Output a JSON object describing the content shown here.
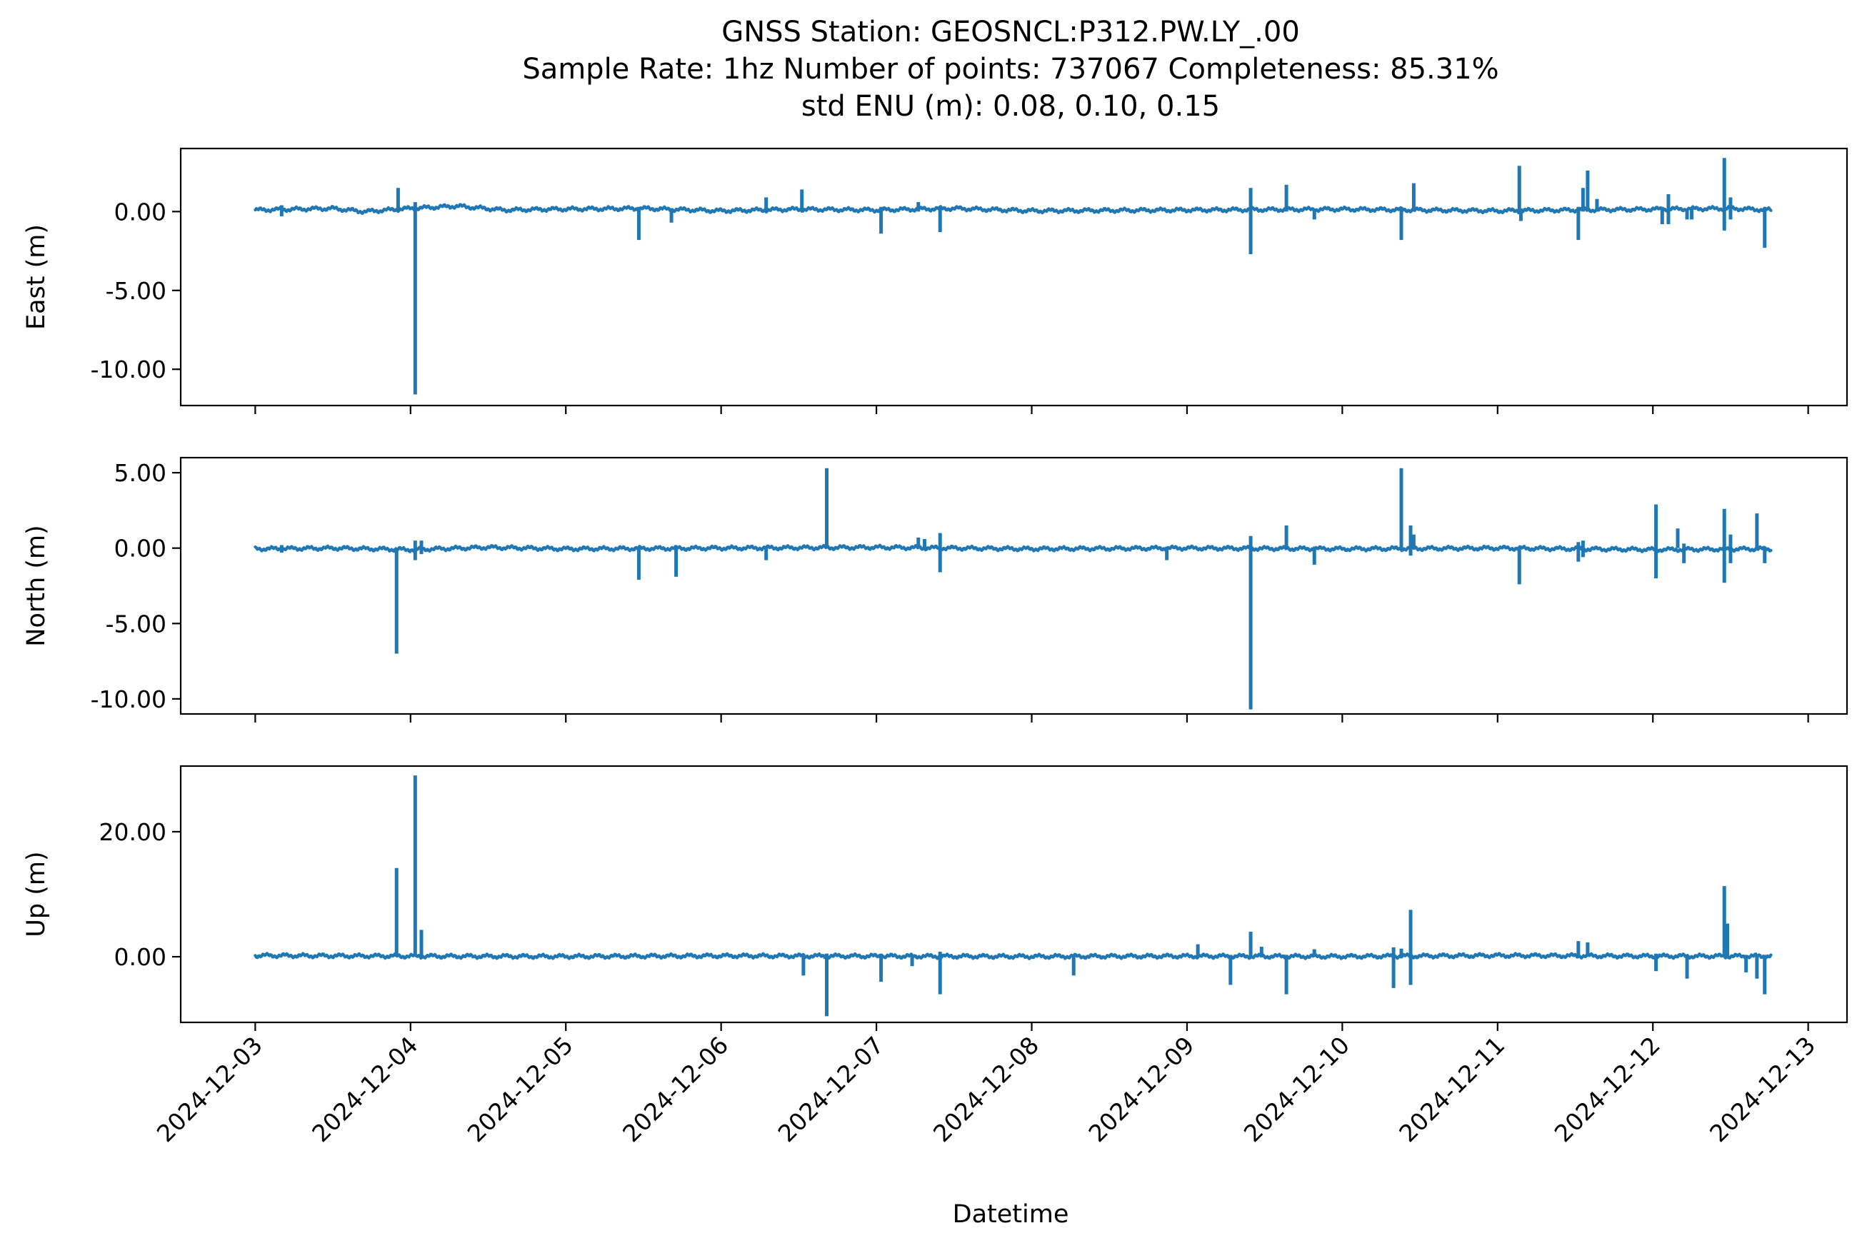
{
  "title": {
    "line1": "GNSS Station: GEOSNCL:P312.PW.LY_.00",
    "line2": "Sample Rate: 1hz   Number of points: 737067    Completeness:  85.31%",
    "line3": "std ENU (m):  0.08, 0.10, 0.15"
  },
  "colors": {
    "series": "#1f77b4",
    "axes": "#000000",
    "background": "#ffffff"
  },
  "chart_data": [
    {
      "type": "line",
      "name": "east",
      "ylabel": "East (m)",
      "ylim": [
        -12.3,
        4.0
      ],
      "yticks": [
        0,
        -5,
        -10
      ],
      "ytick_labels": [
        "0.00",
        "-5.00",
        "-10.00"
      ],
      "baseline": [
        [
          0.0,
          0.1
        ],
        [
          0.5,
          0.2
        ],
        [
          0.7,
          0.0
        ],
        [
          1.0,
          0.2
        ],
        [
          1.3,
          0.35
        ],
        [
          1.6,
          0.1
        ],
        [
          1.9,
          0.15
        ],
        [
          2.5,
          0.2
        ],
        [
          3.0,
          0.05
        ],
        [
          3.5,
          0.15
        ],
        [
          4.0,
          0.1
        ],
        [
          4.5,
          0.2
        ],
        [
          5.0,
          0.05
        ],
        [
          6.0,
          0.1
        ],
        [
          7.0,
          0.15
        ],
        [
          8.0,
          0.05
        ],
        [
          9.0,
          0.15
        ],
        [
          9.5,
          0.2
        ],
        [
          9.76,
          0.1
        ]
      ],
      "spikes": [
        [
          0.17,
          -0.3,
          0.4
        ],
        [
          0.92,
          0.0,
          1.5
        ],
        [
          1.03,
          -11.6,
          0.6
        ],
        [
          2.47,
          -1.8,
          0.3
        ],
        [
          2.68,
          -0.7,
          0.2
        ],
        [
          3.29,
          0.0,
          0.9
        ],
        [
          3.52,
          0.0,
          1.4
        ],
        [
          4.03,
          -1.4,
          0.3
        ],
        [
          4.27,
          0.0,
          0.6
        ],
        [
          4.41,
          -1.3,
          0.3
        ],
        [
          6.41,
          -2.7,
          1.5
        ],
        [
          6.64,
          0.0,
          1.7
        ],
        [
          6.82,
          -0.5,
          0.2
        ],
        [
          7.38,
          -1.8,
          0.3
        ],
        [
          7.46,
          0.0,
          1.8
        ],
        [
          8.14,
          0.0,
          2.9
        ],
        [
          8.15,
          -0.6,
          0.2
        ],
        [
          8.52,
          -1.8,
          0.3
        ],
        [
          8.55,
          0.0,
          1.5
        ],
        [
          8.58,
          0.0,
          2.6
        ],
        [
          8.64,
          0.0,
          0.8
        ],
        [
          9.06,
          -0.8,
          0.3
        ],
        [
          9.1,
          -0.8,
          1.1
        ],
        [
          9.22,
          -0.5,
          0.2
        ],
        [
          9.25,
          -0.5,
          0.2
        ],
        [
          9.46,
          -1.2,
          3.4
        ],
        [
          9.5,
          -0.5,
          0.9
        ],
        [
          9.72,
          -2.3,
          0.2
        ]
      ]
    },
    {
      "type": "line",
      "name": "north",
      "ylabel": "North (m)",
      "ylim": [
        -11.0,
        6.0
      ],
      "yticks": [
        5,
        0,
        -5,
        -10
      ],
      "ytick_labels": [
        "5.00",
        "0.00",
        "-5.00",
        "-10.00"
      ],
      "baseline": [
        [
          0.0,
          -0.05
        ],
        [
          0.5,
          0.0
        ],
        [
          1.0,
          -0.1
        ],
        [
          1.5,
          0.05
        ],
        [
          2.0,
          -0.05
        ],
        [
          3.0,
          0.0
        ],
        [
          4.0,
          0.05
        ],
        [
          5.0,
          -0.05
        ],
        [
          6.0,
          0.0
        ],
        [
          7.0,
          -0.05
        ],
        [
          8.0,
          0.0
        ],
        [
          9.0,
          -0.1
        ],
        [
          9.76,
          -0.05
        ]
      ],
      "spikes": [
        [
          0.17,
          -0.3,
          0.2
        ],
        [
          0.91,
          -7.0,
          0.0
        ],
        [
          1.03,
          -0.8,
          0.5
        ],
        [
          1.07,
          -0.4,
          0.5
        ],
        [
          2.47,
          -2.1,
          0.1
        ],
        [
          2.71,
          -1.9,
          0.1
        ],
        [
          3.29,
          -0.8,
          0.1
        ],
        [
          3.68,
          0.0,
          5.3
        ],
        [
          4.27,
          0.0,
          0.7
        ],
        [
          4.31,
          0.0,
          0.6
        ],
        [
          4.41,
          -1.6,
          1.0
        ],
        [
          5.87,
          -0.8,
          0.1
        ],
        [
          6.41,
          -10.7,
          0.8
        ],
        [
          6.64,
          0.0,
          1.5
        ],
        [
          6.82,
          -1.1,
          0.1
        ],
        [
          7.38,
          0.0,
          5.3
        ],
        [
          7.44,
          -0.5,
          1.5
        ],
        [
          7.46,
          0.0,
          0.9
        ],
        [
          8.14,
          -2.4,
          0.1
        ],
        [
          8.52,
          -0.9,
          0.4
        ],
        [
          8.55,
          -0.6,
          0.5
        ],
        [
          9.02,
          -2.0,
          2.9
        ],
        [
          9.16,
          0.0,
          1.3
        ],
        [
          9.2,
          -1.0,
          0.3
        ],
        [
          9.46,
          -2.3,
          2.6
        ],
        [
          9.5,
          -1.0,
          0.9
        ],
        [
          9.67,
          0.0,
          2.3
        ],
        [
          9.72,
          -1.0,
          0.1
        ]
      ]
    },
    {
      "type": "line",
      "name": "up",
      "ylabel": "Up (m)",
      "ylim": [
        -10.5,
        30.5
      ],
      "yticks": [
        20,
        0
      ],
      "ytick_labels": [
        "20.00",
        "0.00"
      ],
      "baseline": [
        [
          0.0,
          0.2
        ],
        [
          1.0,
          0.1
        ],
        [
          2.0,
          0.05
        ],
        [
          3.0,
          0.15
        ],
        [
          4.0,
          0.1
        ],
        [
          5.0,
          0.05
        ],
        [
          6.0,
          0.1
        ],
        [
          7.0,
          0.05
        ],
        [
          8.0,
          0.2
        ],
        [
          9.0,
          0.1
        ],
        [
          9.76,
          0.1
        ]
      ],
      "spikes": [
        [
          0.91,
          0.0,
          14.2
        ],
        [
          1.03,
          0.0,
          29.0
        ],
        [
          1.07,
          0.0,
          4.3
        ],
        [
          3.53,
          -3.0,
          0.5
        ],
        [
          3.68,
          -9.5,
          0.5
        ],
        [
          4.03,
          -4.0,
          0.5
        ],
        [
          4.23,
          -1.5,
          0.2
        ],
        [
          4.41,
          -6.0,
          0.8
        ],
        [
          5.27,
          -3.0,
          0.3
        ],
        [
          6.07,
          0.0,
          2.0
        ],
        [
          6.28,
          -4.5,
          0.3
        ],
        [
          6.41,
          0.0,
          4.0
        ],
        [
          6.48,
          0.0,
          1.6
        ],
        [
          6.64,
          -6.0,
          0.3
        ],
        [
          6.82,
          0.0,
          1.2
        ],
        [
          7.33,
          -5.0,
          1.5
        ],
        [
          7.38,
          0.0,
          1.3
        ],
        [
          7.44,
          -4.5,
          7.5
        ],
        [
          8.52,
          0.0,
          2.5
        ],
        [
          8.58,
          0.0,
          2.3
        ],
        [
          9.02,
          -2.3,
          0.5
        ],
        [
          9.22,
          -3.5,
          0.3
        ],
        [
          9.46,
          0.0,
          11.3
        ],
        [
          9.48,
          0.0,
          5.3
        ],
        [
          9.6,
          -2.5,
          0.3
        ],
        [
          9.67,
          -3.5,
          0.3
        ],
        [
          9.72,
          -6.0,
          0.3
        ]
      ]
    }
  ],
  "xaxis": {
    "label": "Datetime",
    "range_days": [
      -0.48,
      10.25
    ],
    "ticks": [
      "2024-12-03",
      "2024-12-04",
      "2024-12-05",
      "2024-12-06",
      "2024-12-07",
      "2024-12-08",
      "2024-12-09",
      "2024-12-10",
      "2024-12-11",
      "2024-12-12",
      "2024-12-13"
    ]
  }
}
